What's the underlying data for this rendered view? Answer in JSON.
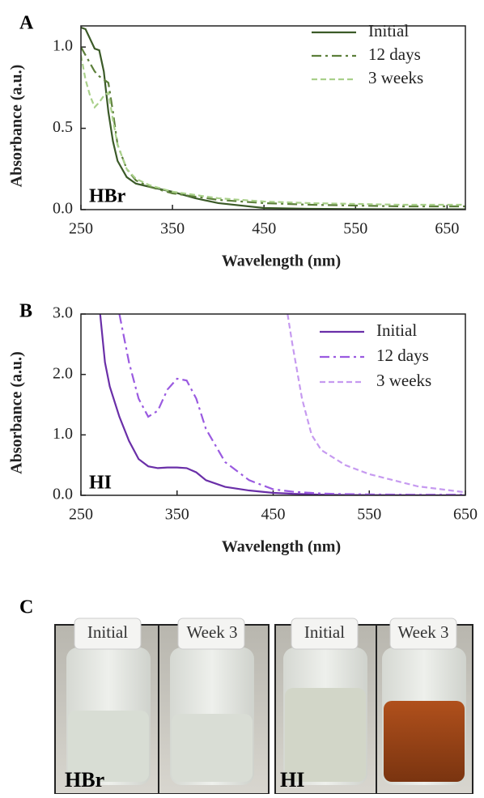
{
  "chart_data": [
    {
      "type": "line",
      "panel_label": "A",
      "annotation": "HBr",
      "x_label": "Wavelength (nm)",
      "y_label": "Absorbance (a.u.)",
      "x": [
        250,
        255,
        260,
        265,
        270,
        275,
        280,
        285,
        290,
        300,
        310,
        325,
        350,
        375,
        400,
        450,
        500,
        550,
        600,
        670
      ],
      "series": [
        {
          "name": "Initial",
          "color": "#3b5a28",
          "linestyle": "solid",
          "values": [
            1.12,
            1.11,
            1.05,
            0.99,
            0.98,
            0.85,
            0.6,
            0.42,
            0.3,
            0.2,
            0.16,
            0.14,
            0.11,
            0.07,
            0.04,
            0.01,
            0.005,
            0.003,
            0.002,
            0.002
          ]
        },
        {
          "name": "12 days",
          "color": "#5c7f3a",
          "linestyle": "dashdot",
          "values": [
            1.0,
            0.95,
            0.9,
            0.85,
            0.82,
            0.8,
            0.78,
            0.6,
            0.4,
            0.25,
            0.18,
            0.14,
            0.1,
            0.08,
            0.06,
            0.04,
            0.03,
            0.025,
            0.02,
            0.02
          ]
        },
        {
          "name": "3 weeks",
          "color": "#a9d08a",
          "linestyle": "dashed",
          "values": [
            0.95,
            0.8,
            0.7,
            0.63,
            0.66,
            0.7,
            0.72,
            0.55,
            0.4,
            0.25,
            0.19,
            0.15,
            0.11,
            0.09,
            0.07,
            0.05,
            0.04,
            0.035,
            0.03,
            0.03
          ]
        }
      ],
      "xlim": [
        250,
        670
      ],
      "xticks": [
        250,
        350,
        450,
        550,
        650
      ],
      "ylim": [
        0,
        1.13
      ],
      "yticks": [
        {
          "value": 0,
          "label": "0.0"
        },
        {
          "value": 0.5,
          "label": "0.5"
        },
        {
          "value": 1,
          "label": "1.0"
        }
      ],
      "legend": "upper right"
    },
    {
      "type": "line",
      "panel_label": "B",
      "annotation": "HI",
      "x_label": "Wavelength (nm)",
      "y_label": "Absorbance (a.u.)",
      "x": [
        270,
        275,
        280,
        290,
        300,
        310,
        320,
        330,
        340,
        350,
        360,
        370,
        380,
        400,
        425,
        450,
        465,
        470,
        480,
        490,
        500,
        525,
        550,
        600,
        650
      ],
      "series": [
        {
          "name": "Initial",
          "color": "#6a2fa8",
          "linestyle": "solid",
          "values": [
            3.0,
            2.2,
            1.8,
            1.3,
            0.9,
            0.6,
            0.48,
            0.45,
            0.46,
            0.46,
            0.45,
            0.38,
            0.25,
            0.14,
            0.08,
            0.04,
            0.03,
            0.025,
            0.02,
            0.015,
            0.01,
            0.005,
            0.003,
            0.002,
            0.001
          ]
        },
        {
          "name": "12 days",
          "color": "#9a5ae0",
          "linestyle": "dashdot",
          "values": [
            null,
            null,
            null,
            3.0,
            2.2,
            1.6,
            1.3,
            1.4,
            1.75,
            1.93,
            1.9,
            1.6,
            1.1,
            0.55,
            0.25,
            0.1,
            0.07,
            0.06,
            0.05,
            0.04,
            0.03,
            0.02,
            0.015,
            0.01,
            0.01
          ]
        },
        {
          "name": "3 weeks",
          "color": "#c69af0",
          "linestyle": "dashed",
          "values": [
            null,
            null,
            null,
            null,
            null,
            null,
            null,
            null,
            null,
            null,
            null,
            null,
            null,
            null,
            null,
            null,
            3.0,
            2.5,
            1.6,
            1.0,
            0.75,
            0.5,
            0.35,
            0.15,
            0.05
          ]
        }
      ],
      "xlim": [
        250,
        650
      ],
      "xticks": [
        250,
        350,
        450,
        550,
        650
      ],
      "ylim": [
        0,
        3
      ],
      "yticks": [
        {
          "value": 0,
          "label": "0.0"
        },
        {
          "value": 1,
          "label": "1.0"
        },
        {
          "value": 2,
          "label": "2.0"
        },
        {
          "value": 3,
          "label": "3.0"
        }
      ],
      "legend": "upper right"
    }
  ],
  "photo_panel": {
    "label": "C",
    "vials": [
      "Initial",
      "Week 3",
      "Initial",
      "Week 3"
    ],
    "groups": [
      "HBr",
      "HI"
    ]
  }
}
